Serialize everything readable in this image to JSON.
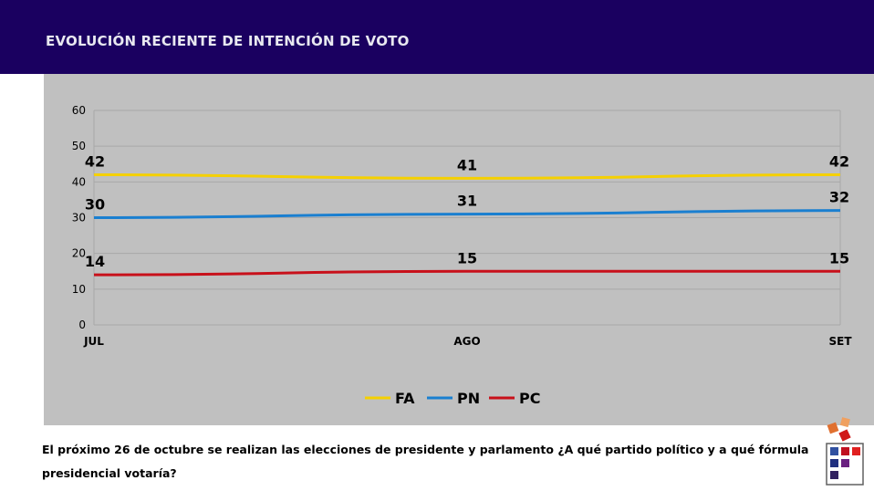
{
  "header": {
    "title": "EVOLUCIÓN RECIENTE DE INTENCIÓN DE VOTO"
  },
  "question": {
    "text": "El próximo 26 de octubre se realizan las elecciones de presidente y parlamento ¿A qué partido político y a qué fórmula presidencial votaría?"
  },
  "colors": {
    "header_bg": "#1a0060",
    "panel_bg": "#c0c0c0",
    "FA": "#f5d000",
    "PN": "#1a7fd0",
    "PC": "#c8101a"
  },
  "chart_data": {
    "type": "line",
    "categories": [
      "JUL",
      "AGO",
      "SET"
    ],
    "series": [
      {
        "name": "FA",
        "values": [
          42,
          41,
          42
        ],
        "color": "#f5d000"
      },
      {
        "name": "PN",
        "values": [
          30,
          31,
          32
        ],
        "color": "#1a7fd0"
      },
      {
        "name": "PC",
        "values": [
          14,
          15,
          15
        ],
        "color": "#c8101a"
      }
    ],
    "ylim": [
      0,
      60
    ],
    "yticks": [
      0,
      10,
      20,
      30,
      40,
      50,
      60
    ],
    "grid": true,
    "legend": "bottom-center",
    "data_labels": true
  }
}
